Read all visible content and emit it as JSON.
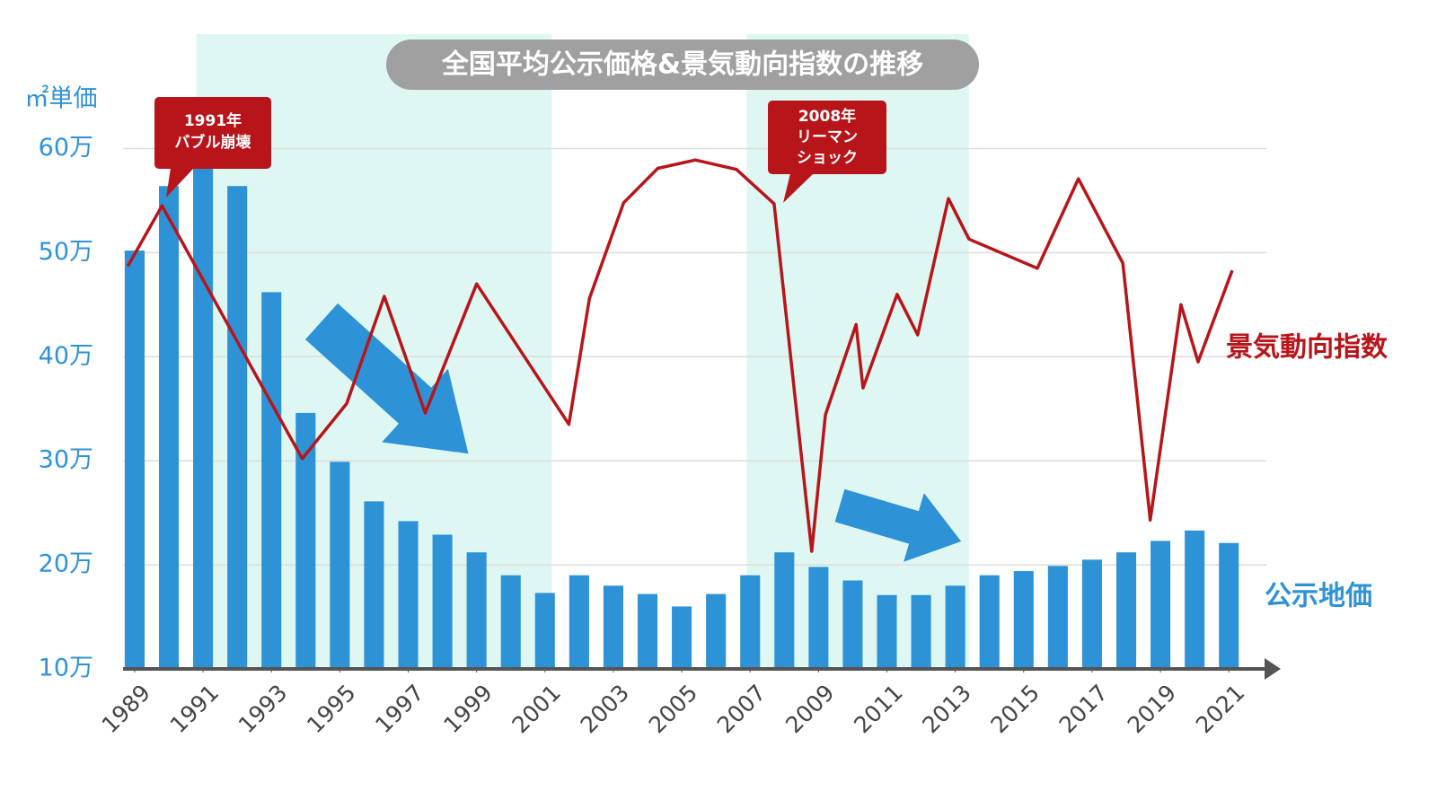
{
  "chart_data": {
    "type": "bar",
    "title": "全国平均公示価格&景気動向指数の推移",
    "y_axis_label": "㎡単価",
    "xlim": [
      1988.66,
      2022.36
    ],
    "xticks": [
      1989,
      1991,
      1993,
      1995,
      1997,
      1999,
      2001,
      2003,
      2005,
      2007,
      2009,
      2011,
      2013,
      2015,
      2017,
      2019,
      2021
    ],
    "ylim": [
      100000,
      710000
    ],
    "yticks": [
      {
        "value": 100000,
        "label": "10万"
      },
      {
        "value": 200000,
        "label": "20万"
      },
      {
        "value": 300000,
        "label": "30万"
      },
      {
        "value": 400000,
        "label": "40万"
      },
      {
        "value": 500000,
        "label": "50万"
      },
      {
        "value": 600000,
        "label": "60万"
      }
    ],
    "grid": true,
    "shaded_ranges": [
      [
        1990.8,
        2001.2
      ],
      [
        2006.9,
        2013.4
      ]
    ],
    "series": [
      {
        "name": "公示地価",
        "type": "bar",
        "color": "#2e93d6",
        "x": [
          1989,
          1990,
          1991,
          1992,
          1993,
          1994,
          1995,
          1996,
          1997,
          1998,
          1999,
          2000,
          2001,
          2002,
          2003,
          2004,
          2005,
          2006,
          2007,
          2008,
          2009,
          2010,
          2011,
          2012,
          2013,
          2014,
          2015,
          2016,
          2017,
          2018,
          2019,
          2020,
          2021
        ],
        "values": [
          502000,
          564000,
          584000,
          564000,
          462000,
          346000,
          299000,
          261000,
          242000,
          229000,
          212000,
          190000,
          173000,
          190000,
          180000,
          172000,
          160000,
          172000,
          190000,
          212000,
          198000,
          185000,
          171000,
          171000,
          180000,
          190000,
          194000,
          199000,
          205000,
          212000,
          223000,
          233000,
          221000
        ]
      },
      {
        "name": "景気動向指数",
        "type": "line",
        "color": "#b8151b",
        "x": [
          1988.8,
          1989.8,
          1993.9,
          1995.2,
          1996.3,
          1997.5,
          1999.0,
          2001.7,
          2002.3,
          2003.3,
          2004.3,
          2005.4,
          2006.6,
          2007.7,
          2008.8,
          2009.2,
          2010.1,
          2010.3,
          2011.3,
          2011.9,
          2012.8,
          2013.4,
          2015.4,
          2016.6,
          2017.9,
          2018.7,
          2019.6,
          2020.1,
          2021.1
        ],
        "values": [
          487000,
          545000,
          302000,
          355000,
          458000,
          346000,
          470000,
          335000,
          456000,
          548000,
          581000,
          589000,
          580000,
          547000,
          213000,
          344000,
          431000,
          370000,
          460000,
          421000,
          552000,
          513000,
          485000,
          571000,
          490000,
          243000,
          450000,
          395000,
          483000
        ]
      }
    ],
    "annotations": [
      {
        "text": [
          "1991年",
          "バブル崩壊"
        ]
      },
      {
        "text": [
          "2008年",
          "リーマン",
          "ショック"
        ]
      }
    ]
  }
}
